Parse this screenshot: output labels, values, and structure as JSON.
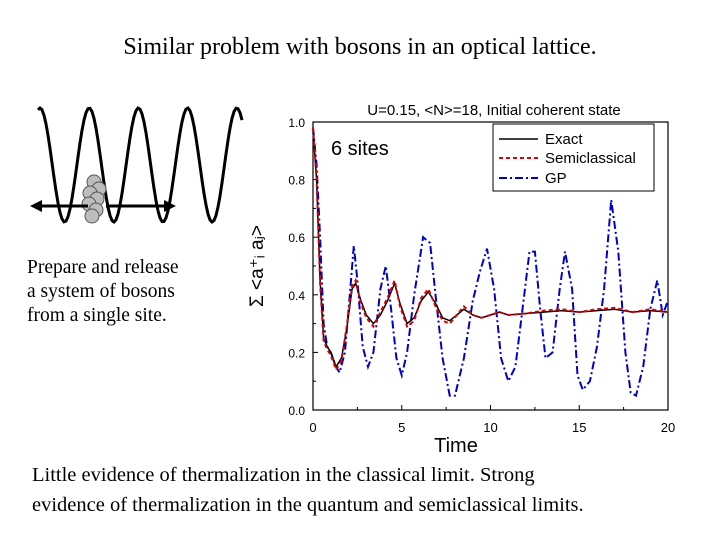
{
  "slide": {
    "title": "Similar problem with bosons in an optical lattice.",
    "left_text": [
      "Prepare and release",
      "a system of bosons",
      "from a single site."
    ],
    "bottom_text": [
      "Little evidence of thermalization in the classical limit. Strong",
      "evidence of thermalization in the quantum and semiclassical limits."
    ]
  },
  "chart_data": {
    "type": "line",
    "title": "U=0.15, <N>=18, Initial coherent state",
    "annotation": "6 sites",
    "xlabel": "Time",
    "ylabel": "Σ <a⁺ᵢ aⱼ>",
    "xlim": [
      0,
      20
    ],
    "ylim": [
      0.0,
      1.0
    ],
    "xticks": [
      "0",
      "5",
      "10",
      "15",
      "20"
    ],
    "yticks": [
      "0.0",
      "0.2",
      "0.4",
      "0.6",
      "0.8",
      "1.0"
    ],
    "legend_position": "top-right",
    "series": [
      {
        "name": "Exact",
        "color": "#000000",
        "style": "solid",
        "points": [
          [
            0,
            0.98
          ],
          [
            0.2,
            0.8
          ],
          [
            0.4,
            0.45
          ],
          [
            0.6,
            0.25
          ],
          [
            0.8,
            0.22
          ],
          [
            1.0,
            0.2
          ],
          [
            1.3,
            0.15
          ],
          [
            1.6,
            0.18
          ],
          [
            1.9,
            0.28
          ],
          [
            2.2,
            0.42
          ],
          [
            2.4,
            0.44
          ],
          [
            2.7,
            0.38
          ],
          [
            3.0,
            0.33
          ],
          [
            3.4,
            0.3
          ],
          [
            3.8,
            0.33
          ],
          [
            4.2,
            0.38
          ],
          [
            4.6,
            0.44
          ],
          [
            4.9,
            0.37
          ],
          [
            5.3,
            0.3
          ],
          [
            5.7,
            0.32
          ],
          [
            6.1,
            0.38
          ],
          [
            6.5,
            0.41
          ],
          [
            6.9,
            0.37
          ],
          [
            7.3,
            0.32
          ],
          [
            7.7,
            0.31
          ],
          [
            8.1,
            0.33
          ],
          [
            8.5,
            0.35
          ],
          [
            9.0,
            0.33
          ],
          [
            9.5,
            0.32
          ],
          [
            10.0,
            0.33
          ],
          [
            10.5,
            0.34
          ],
          [
            11.0,
            0.33
          ],
          [
            12.0,
            0.335
          ],
          [
            13.0,
            0.34
          ],
          [
            14.0,
            0.345
          ],
          [
            15.0,
            0.34
          ],
          [
            16.0,
            0.345
          ],
          [
            17.0,
            0.35
          ],
          [
            18.0,
            0.34
          ],
          [
            19.0,
            0.345
          ],
          [
            20.0,
            0.34
          ]
        ]
      },
      {
        "name": "Semiclassical",
        "color": "#dd0000",
        "style": "dashed",
        "points": [
          [
            0,
            0.98
          ],
          [
            0.2,
            0.8
          ],
          [
            0.4,
            0.44
          ],
          [
            0.6,
            0.24
          ],
          [
            0.8,
            0.21
          ],
          [
            1.0,
            0.19
          ],
          [
            1.3,
            0.14
          ],
          [
            1.6,
            0.17
          ],
          [
            1.9,
            0.29
          ],
          [
            2.2,
            0.43
          ],
          [
            2.4,
            0.45
          ],
          [
            2.7,
            0.37
          ],
          [
            3.0,
            0.32
          ],
          [
            3.4,
            0.29
          ],
          [
            3.8,
            0.34
          ],
          [
            4.2,
            0.39
          ],
          [
            4.6,
            0.45
          ],
          [
            4.9,
            0.36
          ],
          [
            5.3,
            0.29
          ],
          [
            5.7,
            0.31
          ],
          [
            6.1,
            0.39
          ],
          [
            6.5,
            0.42
          ],
          [
            6.9,
            0.36
          ],
          [
            7.3,
            0.31
          ],
          [
            7.7,
            0.3
          ],
          [
            8.1,
            0.33
          ],
          [
            8.5,
            0.36
          ],
          [
            9.0,
            0.33
          ],
          [
            9.5,
            0.32
          ],
          [
            10.0,
            0.33
          ],
          [
            10.5,
            0.34
          ],
          [
            11.0,
            0.33
          ],
          [
            12.0,
            0.335
          ],
          [
            13.0,
            0.345
          ],
          [
            14.0,
            0.35
          ],
          [
            15.0,
            0.34
          ],
          [
            16.0,
            0.35
          ],
          [
            17.0,
            0.355
          ],
          [
            18.0,
            0.34
          ],
          [
            19.0,
            0.35
          ],
          [
            20.0,
            0.34
          ]
        ]
      },
      {
        "name": "GP",
        "color": "#0000cc",
        "style": "dashdot",
        "points": [
          [
            0,
            0.98
          ],
          [
            0.2,
            0.85
          ],
          [
            0.4,
            0.6
          ],
          [
            0.6,
            0.3
          ],
          [
            0.8,
            0.22
          ],
          [
            1.0,
            0.2
          ],
          [
            1.3,
            0.15
          ],
          [
            1.5,
            0.13
          ],
          [
            1.8,
            0.2
          ],
          [
            2.1,
            0.42
          ],
          [
            2.3,
            0.57
          ],
          [
            2.5,
            0.45
          ],
          [
            2.8,
            0.22
          ],
          [
            3.1,
            0.15
          ],
          [
            3.4,
            0.2
          ],
          [
            3.8,
            0.42
          ],
          [
            4.1,
            0.5
          ],
          [
            4.4,
            0.35
          ],
          [
            4.7,
            0.18
          ],
          [
            5.0,
            0.12
          ],
          [
            5.3,
            0.2
          ],
          [
            5.7,
            0.4
          ],
          [
            6.2,
            0.6
          ],
          [
            6.6,
            0.58
          ],
          [
            6.9,
            0.4
          ],
          [
            7.3,
            0.18
          ],
          [
            7.7,
            0.05
          ],
          [
            8.0,
            0.05
          ],
          [
            8.5,
            0.18
          ],
          [
            9.0,
            0.38
          ],
          [
            9.4,
            0.48
          ],
          [
            9.8,
            0.56
          ],
          [
            10.2,
            0.42
          ],
          [
            10.6,
            0.18
          ],
          [
            11.0,
            0.1
          ],
          [
            11.4,
            0.15
          ],
          [
            11.8,
            0.35
          ],
          [
            12.2,
            0.55
          ],
          [
            12.5,
            0.55
          ],
          [
            12.8,
            0.35
          ],
          [
            13.1,
            0.18
          ],
          [
            13.5,
            0.2
          ],
          [
            13.9,
            0.42
          ],
          [
            14.2,
            0.55
          ],
          [
            14.6,
            0.42
          ],
          [
            14.9,
            0.12
          ],
          [
            15.2,
            0.07
          ],
          [
            15.6,
            0.1
          ],
          [
            16.0,
            0.22
          ],
          [
            16.4,
            0.42
          ],
          [
            16.8,
            0.73
          ],
          [
            17.2,
            0.55
          ],
          [
            17.6,
            0.2
          ],
          [
            17.9,
            0.06
          ],
          [
            18.2,
            0.05
          ],
          [
            18.6,
            0.15
          ],
          [
            19.0,
            0.35
          ],
          [
            19.4,
            0.45
          ],
          [
            19.7,
            0.33
          ],
          [
            20.0,
            0.38
          ]
        ]
      }
    ]
  }
}
